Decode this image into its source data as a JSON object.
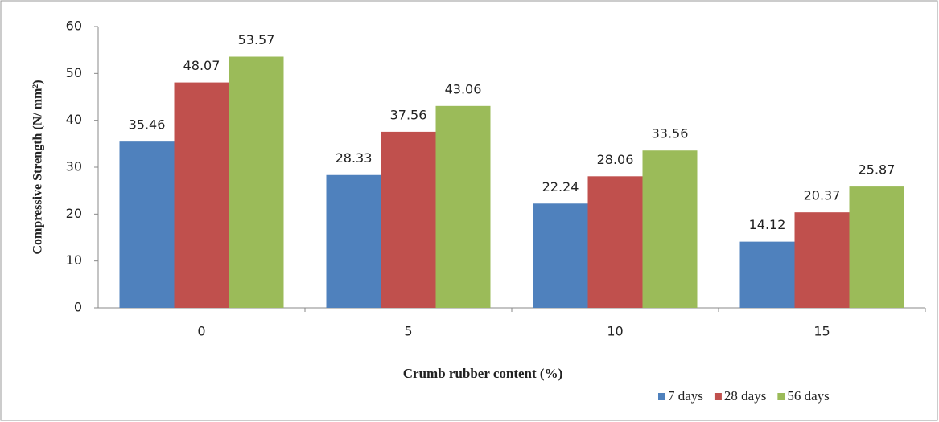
{
  "chart_data": {
    "type": "bar",
    "x_label": "Crumb rubber content (%)",
    "y_label": "Compressive Strength (N/ mm²)",
    "categories": [
      "0",
      "5",
      "10",
      "15"
    ],
    "series": [
      {
        "name": "7 days",
        "color": "#4f81bd",
        "values": [
          35.46,
          28.33,
          22.24,
          14.12
        ]
      },
      {
        "name": "28 days",
        "color": "#c0504d",
        "values": [
          48.07,
          37.56,
          28.06,
          20.37
        ]
      },
      {
        "name": "56 days",
        "color": "#9bbb59",
        "values": [
          53.57,
          43.06,
          33.56,
          25.87
        ]
      }
    ],
    "ylim": [
      0,
      60
    ],
    "yticks": [
      0,
      10,
      20,
      30,
      40,
      50,
      60
    ],
    "grid": false,
    "legend": "bottom-right"
  }
}
